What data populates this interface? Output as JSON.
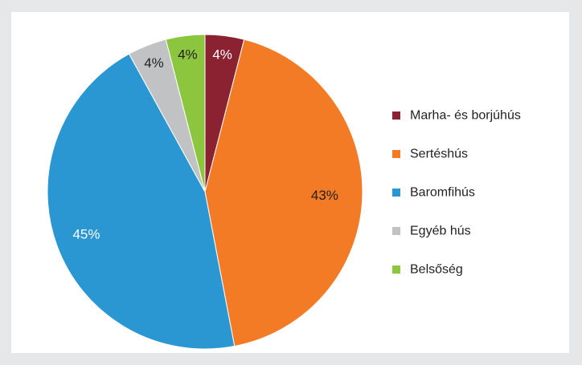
{
  "colors": {
    "page_background": "#e6e7e8",
    "panel_background": "#ffffff"
  },
  "chart_data": {
    "type": "pie",
    "title": "",
    "legend_placement": "right",
    "start_angle_deg": 0,
    "direction": "clockwise",
    "slices": [
      {
        "name": "Marha- és borjúhús",
        "value": 4,
        "label": "4%",
        "color": "#8b2232",
        "label_color": "#ffffff"
      },
      {
        "name": "Sertéshús",
        "value": 43,
        "label": "43%",
        "color": "#f47b26",
        "label_color": "#231f20"
      },
      {
        "name": "Baromfihús",
        "value": 45,
        "label": "45%",
        "color": "#2a96d2",
        "label_color": "#ffffff"
      },
      {
        "name": "Egyéb hús",
        "value": 4,
        "label": "4%",
        "color": "#c0c2c4",
        "label_color": "#231f20"
      },
      {
        "name": "Belsőség",
        "value": 4,
        "label": "4%",
        "color": "#8cc63e",
        "label_color": "#231f20"
      }
    ]
  }
}
